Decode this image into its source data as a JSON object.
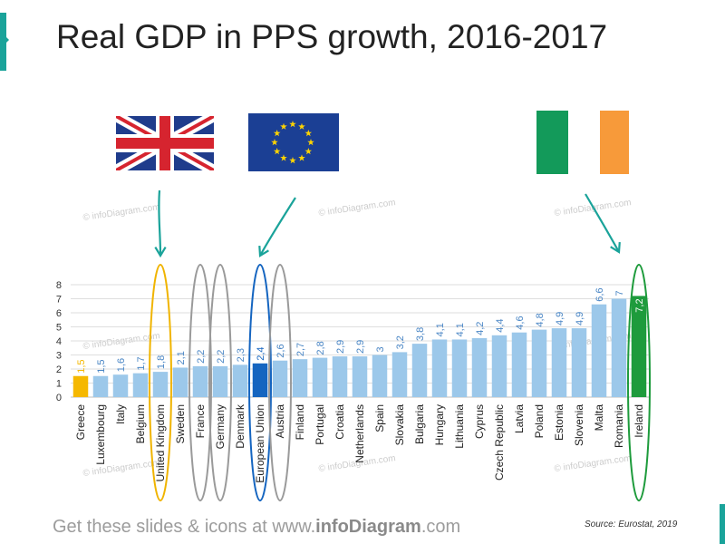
{
  "title": "Real GDP in PPS growth, 2016-2017",
  "footer": {
    "prefix": "Get these slides & icons at www.",
    "brand": "infoDiagram",
    "suffix": ".com"
  },
  "source": "Source: Eurostat, 2019",
  "watermark": "© infoDiagram.com",
  "flags": [
    {
      "icon": "united-kingdom-flag-icon",
      "points_to": "United Kingdom"
    },
    {
      "icon": "european-union-flag-icon",
      "points_to": "European Union"
    },
    {
      "icon": "ireland-flag-icon",
      "points_to": "Ireland"
    }
  ],
  "colors": {
    "bar": "#9cc8ea",
    "greece": "#f5b800",
    "eu": "#1565c0",
    "ireland": "#1e9b3c",
    "label": "#4a86c5",
    "circle_uk": "#f0b400",
    "circle_grey": "#9a9a9a",
    "circle_eu": "#1565c0",
    "circle_ireland": "#1e9b3c",
    "arrow": "#1aa39a"
  },
  "chart_data": {
    "type": "bar",
    "title": "Real GDP in PPS growth, 2016-2017",
    "xlabel": "",
    "ylabel": "",
    "ylim": [
      0,
      8
    ],
    "yticks": [
      0,
      1,
      2,
      3,
      4,
      5,
      6,
      7,
      8
    ],
    "grid": true,
    "categories": [
      "Greece",
      "Luxembourg",
      "Italy",
      "Belgium",
      "United Kingdom",
      "Sweden",
      "France",
      "Germany",
      "Denmark",
      "European Union",
      "Austria",
      "Finland",
      "Portugal",
      "Croatia",
      "Netherlands",
      "Spain",
      "Slovakia",
      "Bulgaria",
      "Hungary",
      "Lithuania",
      "Cyprus",
      "Czech Republic",
      "Latvia",
      "Poland",
      "Estonia",
      "Slovenia",
      "Malta",
      "Romania",
      "Ireland"
    ],
    "values": [
      1.5,
      1.5,
      1.6,
      1.7,
      1.8,
      2.1,
      2.2,
      2.2,
      2.3,
      2.4,
      2.6,
      2.7,
      2.8,
      2.9,
      2.9,
      3,
      3.2,
      3.8,
      4.1,
      4.1,
      4.2,
      4.4,
      4.6,
      4.8,
      4.9,
      4.9,
      6.6,
      7,
      7.2
    ],
    "value_labels": [
      "1,5",
      "1,5",
      "1,6",
      "1,7",
      "1,8",
      "2,1",
      "2,2",
      "2,2",
      "2,3",
      "2,4",
      "2,6",
      "2,7",
      "2,8",
      "2,9",
      "2,9",
      "3",
      "3,2",
      "3,8",
      "4,1",
      "4,1",
      "4,2",
      "4,4",
      "4,6",
      "4,8",
      "4,9",
      "4,9",
      "6,6",
      "7",
      "7,2"
    ],
    "highlighted": {
      "Greece": "#f5b800",
      "European Union": "#1565c0",
      "Ireland": "#1e9b3c"
    },
    "circled": [
      "United Kingdom",
      "France",
      "Germany",
      "European Union",
      "Austria",
      "Ireland"
    ]
  }
}
